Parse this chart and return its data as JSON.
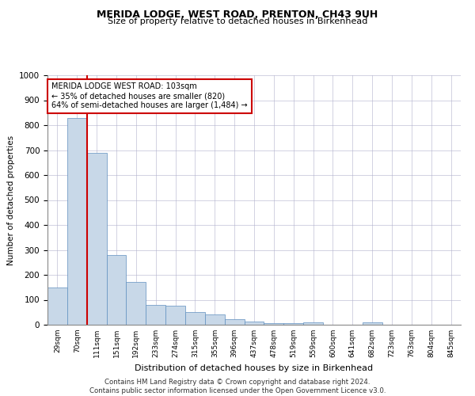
{
  "title": "MERIDA LODGE, WEST ROAD, PRENTON, CH43 9UH",
  "subtitle": "Size of property relative to detached houses in Birkenhead",
  "xlabel": "Distribution of detached houses by size in Birkenhead",
  "ylabel": "Number of detached properties",
  "footnote1": "Contains HM Land Registry data © Crown copyright and database right 2024.",
  "footnote2": "Contains public sector information licensed under the Open Government Licence v3.0.",
  "bar_color": "#c8d8e8",
  "bar_edge_color": "#5f8fbf",
  "grid_color": "#b0b0cc",
  "highlight_line_color": "#cc0000",
  "annotation_box_color": "#cc0000",
  "categories": [
    "29sqm",
    "70sqm",
    "111sqm",
    "151sqm",
    "192sqm",
    "233sqm",
    "274sqm",
    "315sqm",
    "355sqm",
    "396sqm",
    "437sqm",
    "478sqm",
    "519sqm",
    "559sqm",
    "600sqm",
    "641sqm",
    "682sqm",
    "723sqm",
    "763sqm",
    "804sqm",
    "845sqm"
  ],
  "values": [
    148,
    828,
    688,
    280,
    173,
    78,
    75,
    50,
    42,
    22,
    12,
    5,
    5,
    10,
    0,
    0,
    8,
    0,
    0,
    0,
    0
  ],
  "ylim": [
    0,
    1000
  ],
  "yticks": [
    0,
    100,
    200,
    300,
    400,
    500,
    600,
    700,
    800,
    900,
    1000
  ],
  "highlight_bar_index": 2,
  "property_label": "MERIDA LODGE WEST ROAD: 103sqm",
  "pct_smaller": 35,
  "n_smaller": 820,
  "pct_larger_semi": 64,
  "n_larger_semi": 1484
}
